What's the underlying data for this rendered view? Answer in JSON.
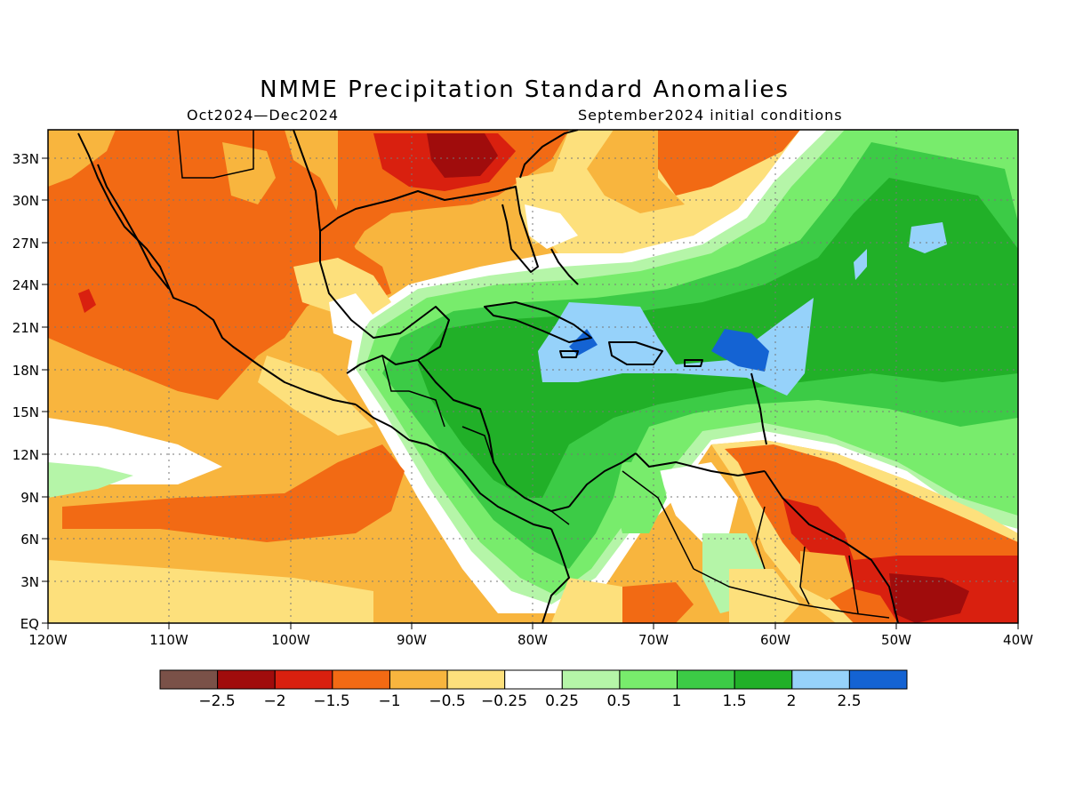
{
  "map": {
    "title": "NMME Precipitation Standard Anomalies",
    "period": "Oct2024—Dec2024",
    "initial_conditions": "September2024 initial conditions",
    "lon_labels": [
      "120W",
      "110W",
      "100W",
      "90W",
      "80W",
      "70W",
      "60W",
      "50W",
      "40W"
    ],
    "lat_labels": [
      "EQ",
      "3N",
      "6N",
      "9N",
      "12N",
      "15N",
      "18N",
      "21N",
      "24N",
      "27N",
      "30N",
      "33N"
    ],
    "lon_range": [
      -120,
      -40
    ],
    "lat_range": [
      0,
      35
    ],
    "grid": "dotted"
  },
  "colorbar": {
    "labels": [
      "−2.5",
      "−2",
      "−1.5",
      "−1",
      "−0.5",
      "−0.25",
      "0.25",
      "0.5",
      "1",
      "1.5",
      "2",
      "2.5"
    ],
    "colors": [
      "#7a5148",
      "#a00c0c",
      "#d9200f",
      "#f26a14",
      "#f8b53e",
      "#fde07c",
      "#ffffff",
      "#b5f5a8",
      "#78ec6c",
      "#3ccb46",
      "#21b028",
      "#96d2fa",
      "#1463d3"
    ]
  },
  "regions": [
    {
      "name": "west-mexico-drier",
      "level": "−1.5 to −1"
    },
    {
      "name": "southeast-us-driest",
      "level": "−2.5 to −2"
    },
    {
      "name": "caribbean-wetter",
      "level": "1.5 to 2"
    },
    {
      "name": "hispaniola-wettest",
      "level": "2 to 2.5+"
    },
    {
      "name": "guianas-drier",
      "level": "−2.5 to −1.5"
    }
  ]
}
